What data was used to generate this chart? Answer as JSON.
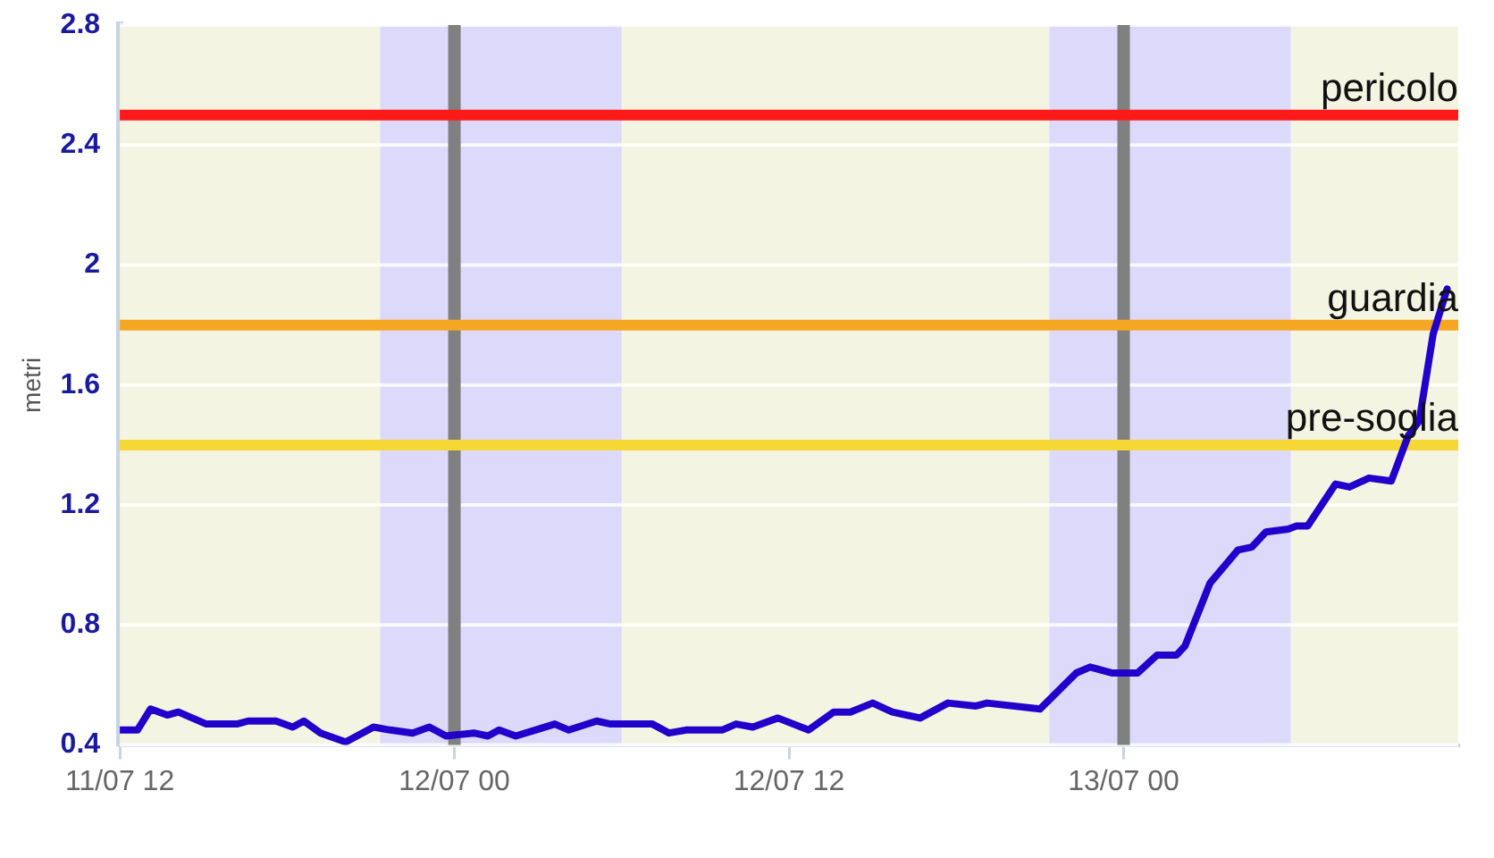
{
  "chart_data": {
    "type": "line",
    "ylabel": "metri",
    "x": [
      "--07-11T12:00",
      "--07-11T12:38",
      "--07-11T13:06",
      "--07-11T13:42",
      "--07-11T14:06",
      "--07-11T14:36",
      "--07-11T15:06",
      "--07-11T16:12",
      "--07-11T16:36",
      "--07-11T17:36",
      "--07-11T18:12",
      "--07-11T18:36",
      "--07-11T19:12",
      "--07-11T20:06",
      "--07-11T21:06",
      "--07-11T21:42",
      "--07-11T22:30",
      "--07-11T23:06",
      "--07-11T23:42",
      "--07-12T00:42",
      "--07-12T01:12",
      "--07-12T01:36",
      "--07-12T02:12",
      "--07-12T02:54",
      "--07-12T03:36",
      "--07-12T04:06",
      "--07-12T05:06",
      "--07-12T05:36",
      "--07-12T07:06",
      "--07-12T07:42",
      "--07-12T08:18",
      "--07-12T09:36",
      "--07-12T10:06",
      "--07-12T10:42",
      "--07-12T11:36",
      "--07-12T12:42",
      "--07-12T13:36",
      "--07-12T14:12",
      "--07-12T15:00",
      "--07-12T15:42",
      "--07-12T16:42",
      "--07-12T17:42",
      "--07-12T18:42",
      "--07-12T19:06",
      "--07-12T21:00",
      "--07-12T22:18",
      "--07-12T22:48",
      "--07-12T23:36",
      "--07-13T00:30",
      "--07-13T01:12",
      "--07-13T01:54",
      "--07-13T02:12",
      "--07-13T03:06",
      "--07-13T04:06",
      "--07-13T04:36",
      "--07-13T05:06",
      "--07-13T05:54",
      "--07-13T06:12",
      "--07-13T06:36",
      "--07-13T07:36",
      "--07-13T08:06",
      "--07-13T08:48",
      "--07-13T09:36",
      "--07-13T10:12",
      "--07-13T10:36",
      "--07-13T11:06",
      "--07-13T11:36"
    ],
    "series": [
      {
        "color": "#2200cc",
        "values": [
          0.45,
          0.45,
          0.52,
          0.5,
          0.51,
          0.49,
          0.47,
          0.47,
          0.48,
          0.48,
          0.46,
          0.48,
          0.44,
          0.41,
          0.46,
          0.45,
          0.44,
          0.46,
          0.43,
          0.44,
          0.43,
          0.45,
          0.43,
          0.45,
          0.47,
          0.45,
          0.48,
          0.47,
          0.47,
          0.44,
          0.45,
          0.45,
          0.47,
          0.46,
          0.49,
          0.45,
          0.51,
          0.51,
          0.54,
          0.51,
          0.49,
          0.54,
          0.53,
          0.54,
          0.52,
          0.64,
          0.66,
          0.64,
          0.64,
          0.7,
          0.7,
          0.73,
          0.94,
          1.05,
          1.06,
          1.11,
          1.12,
          1.13,
          1.13,
          1.27,
          1.26,
          1.29,
          1.28,
          1.43,
          1.48,
          1.77,
          1.92
        ]
      }
    ],
    "xlim": [
      "--07-11T12:00",
      "--07-13T12:00"
    ],
    "xticks": [
      {
        "value": "--07-11T12:00",
        "label": "11/07 12"
      },
      {
        "value": "--07-12T00:00",
        "label": "12/07 00"
      },
      {
        "value": "--07-12T12:00",
        "label": "12/07 12"
      },
      {
        "value": "--07-13T00:00",
        "label": "13/07 00"
      }
    ],
    "ylim": [
      0.4,
      2.8
    ],
    "yticks": [
      0.4,
      0.8,
      1.2,
      1.6,
      2,
      2.4,
      2.8
    ],
    "grid": true,
    "marker": "none",
    "line_style": "solid",
    "bands": [
      {
        "axis": "x",
        "from": "--07-11T12:00",
        "to": "--07-11T21:20",
        "color": "#f4f4e2"
      },
      {
        "axis": "x",
        "from": "--07-11T21:20",
        "to": "--07-12T06:00",
        "color": "#dcd9fb"
      },
      {
        "axis": "x",
        "from": "--07-12T06:00",
        "to": "--07-12T21:20",
        "color": "#f4f4e2"
      },
      {
        "axis": "x",
        "from": "--07-12T21:20",
        "to": "--07-13T06:00",
        "color": "#dcd9fb"
      },
      {
        "axis": "x",
        "from": "--07-13T06:00",
        "to": "--07-13T12:00",
        "color": "#f4f4e2"
      }
    ],
    "ref_lines": [
      {
        "axis": "x",
        "value": "--07-12T00:00",
        "color": "#808080"
      },
      {
        "axis": "x",
        "value": "--07-13T00:00",
        "color": "#808080"
      },
      {
        "axis": "y",
        "value": 2.5,
        "label": "pericolo",
        "color": "#ff1a1a"
      },
      {
        "axis": "y",
        "value": 1.8,
        "label": "guardia",
        "color": "#f5a623"
      },
      {
        "axis": "y",
        "value": 1.4,
        "label": "pre-soglia",
        "color": "#f5d835"
      }
    ]
  }
}
